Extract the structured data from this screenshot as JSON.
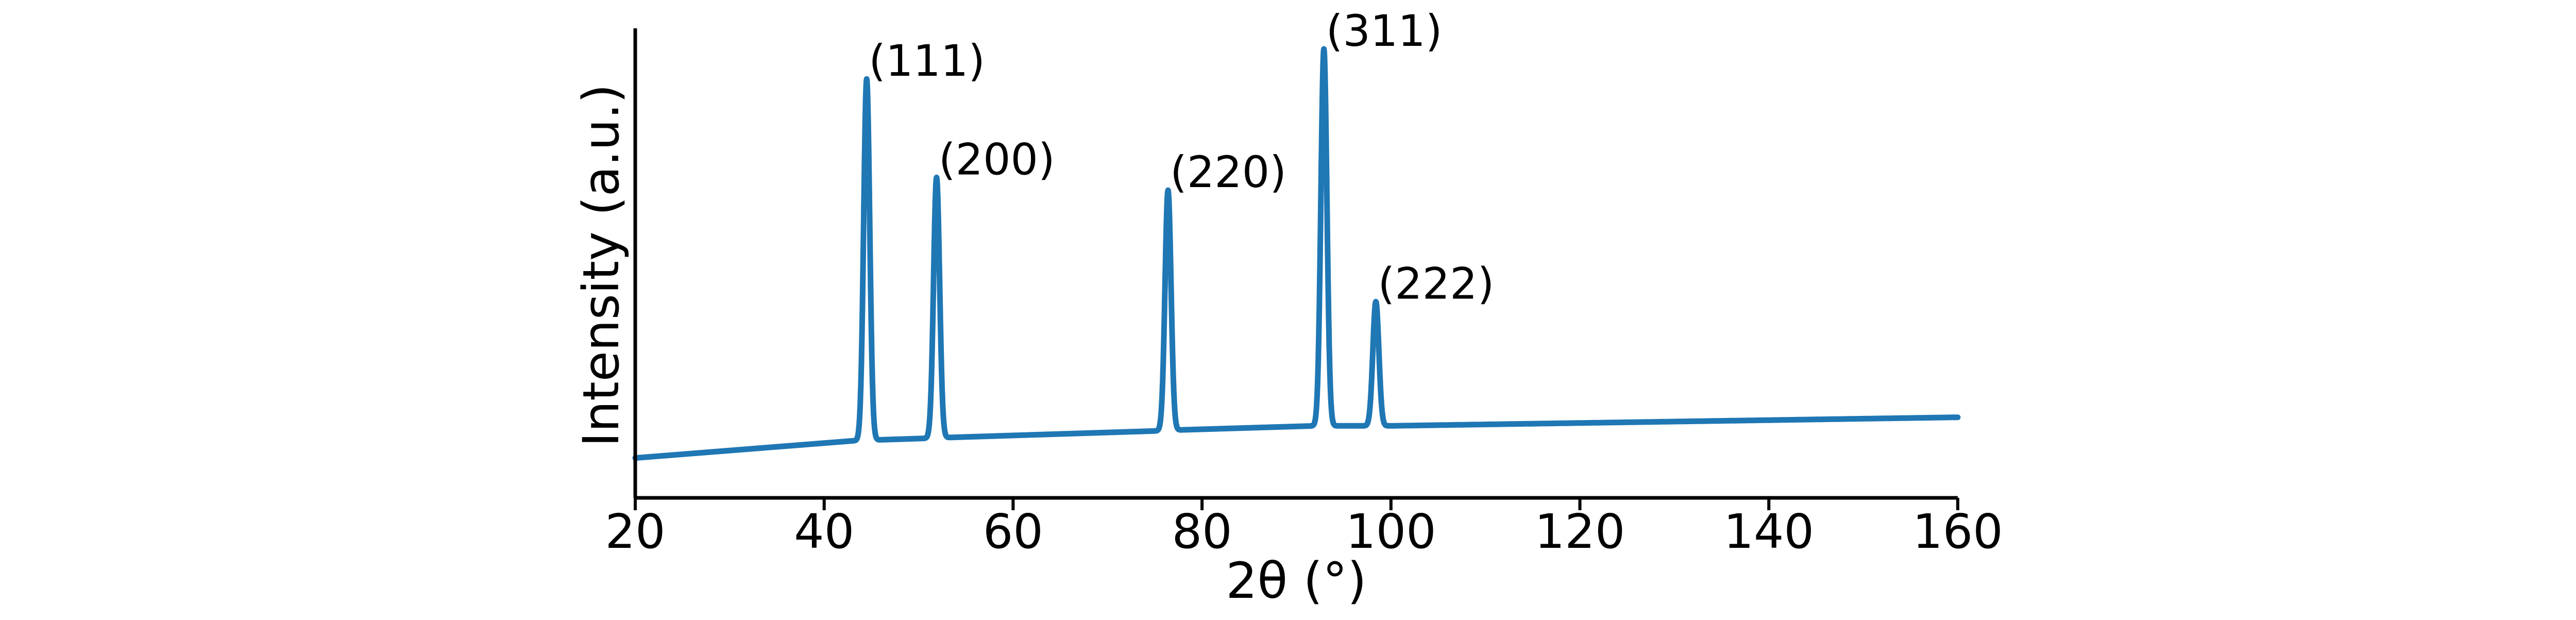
{
  "chart_data": {
    "type": "line",
    "title": "",
    "xlabel": "2θ (°)",
    "ylabel": "Intensity (a.u.)",
    "xlim": [
      20,
      160
    ],
    "ylim": [
      0,
      1
    ],
    "grid": false,
    "legend": "none",
    "x_ticks": [
      20,
      40,
      60,
      80,
      100,
      120,
      140,
      160
    ],
    "x_tick_labels": [
      "20",
      "40",
      "60",
      "80",
      "100",
      "120",
      "140",
      "160"
    ],
    "line_color": "#1f77b4",
    "background": {
      "x": [
        20,
        43,
        44,
        51,
        52,
        75,
        77,
        92,
        94,
        98,
        100,
        160
      ],
      "y": [
        0.045,
        0.085,
        0.086,
        0.091,
        0.092,
        0.108,
        0.11,
        0.12,
        0.12,
        0.12,
        0.12,
        0.14
      ]
    },
    "peaks": [
      {
        "label": "(111)",
        "x": 44.5,
        "y": 0.93
      },
      {
        "label": "(200)",
        "x": 51.9,
        "y": 0.7
      },
      {
        "label": "(220)",
        "x": 76.4,
        "y": 0.67
      },
      {
        "label": "(311)",
        "x": 92.9,
        "y": 1.0
      },
      {
        "label": "(222)",
        "x": 98.4,
        "y": 0.41
      }
    ]
  }
}
